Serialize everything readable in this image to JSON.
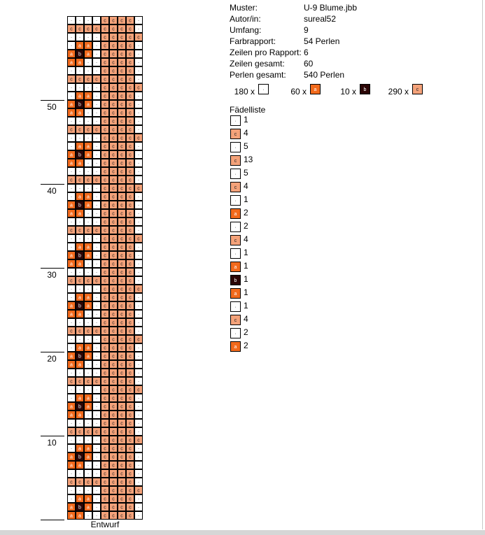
{
  "info": {
    "rows": [
      {
        "label": "Muster:",
        "value": "U-9 Blume.jbb"
      },
      {
        "label": "Autor/in:",
        "value": "sureal52"
      },
      {
        "label": "Umfang:",
        "value": "9"
      },
      {
        "label": "Farbrapport:",
        "value": "54 Perlen"
      },
      {
        "label": "Zeilen pro Rapport:",
        "value": "6"
      },
      {
        "label": "Zeilen gesamt:",
        "value": "60"
      },
      {
        "label": "Perlen gesamt:",
        "value": "540 Perlen"
      }
    ]
  },
  "colors": {
    "·": "#ffffff",
    "a": "#f26a1c",
    "b": "#2b0505",
    "c": "#f4a27a"
  },
  "counts": [
    {
      "count": "180 x",
      "symbol": "·"
    },
    {
      "count": "60 x",
      "symbol": "a"
    },
    {
      "count": "10 x",
      "symbol": "b"
    },
    {
      "count": "290 x",
      "symbol": "c"
    }
  ],
  "threading": {
    "title": "Fädelliste",
    "items": [
      {
        "symbol": "·",
        "count": 1
      },
      {
        "symbol": "c",
        "count": 4
      },
      {
        "symbol": "·",
        "count": 5
      },
      {
        "symbol": "c",
        "count": 13
      },
      {
        "symbol": "·",
        "count": 5
      },
      {
        "symbol": "c",
        "count": 4
      },
      {
        "symbol": "·",
        "count": 1
      },
      {
        "symbol": "a",
        "count": 2
      },
      {
        "symbol": "·",
        "count": 2
      },
      {
        "symbol": "c",
        "count": 4
      },
      {
        "symbol": "·",
        "count": 1
      },
      {
        "symbol": "a",
        "count": 1
      },
      {
        "symbol": "b",
        "count": 1
      },
      {
        "symbol": "a",
        "count": 1
      },
      {
        "symbol": "·",
        "count": 1
      },
      {
        "symbol": "c",
        "count": 4
      },
      {
        "symbol": "·",
        "count": 2
      },
      {
        "symbol": "a",
        "count": 2
      }
    ]
  },
  "grid": {
    "caption": "Entwurf",
    "row_numbers": [
      10,
      20,
      30,
      40,
      50
    ],
    "rows": [
      "····cccc·",
      "cccccccc·",
      "····ccccc",
      "·aa·cccc·",
      "aba·cccc·",
      "aa··cccc·",
      "····cccc·",
      "cccccccc·",
      "····ccccc",
      "·aa·cccc·",
      "aba·cccc·",
      "aa··cccc·",
      "····cccc·",
      "cccccccc·",
      "····ccccc",
      "·aa·cccc·",
      "aba·cccc·",
      "aa··cccc·",
      "····cccc·",
      "cccccccc·",
      "····ccccc",
      "·aa·cccc·",
      "aba·cccc·",
      "aa··cccc·",
      "····cccc·",
      "cccccccc·",
      "····ccccc",
      "·aa·cccc·",
      "aba·cccc·",
      "aa··cccc·",
      "····cccc·",
      "cccccccc·",
      "····ccccc",
      "·aa·cccc·",
      "aba·cccc·",
      "aa··cccc·",
      "····cccc·",
      "cccccccc·",
      "····ccccc",
      "·aa·cccc·",
      "aba·cccc·",
      "aa··cccc·",
      "····cccc·",
      "cccccccc·",
      "····ccccc",
      "·aa·cccc·",
      "aba·cccc·",
      "aa··cccc·",
      "····cccc·",
      "cccccccc·",
      "····ccccc",
      "·aa·cccc·",
      "aba·cccc·",
      "aa··cccc·",
      "····cccc·",
      "cccccccc·",
      "····ccccc",
      "·aa·cccc·",
      "aba·cccc·",
      "aa··cccc·"
    ]
  }
}
